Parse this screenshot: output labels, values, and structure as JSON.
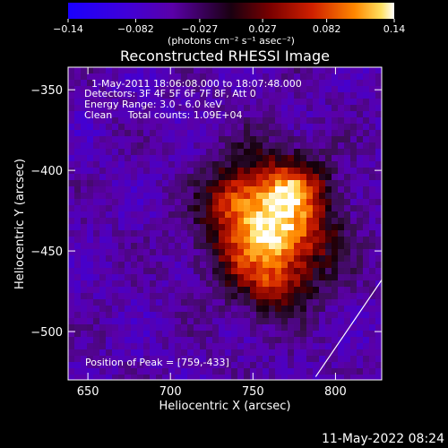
{
  "chart_data": {
    "type": "heatmap",
    "title": "Reconstructed RHESSI Image",
    "xlabel": "Heliocentric X (arcsec)",
    "ylabel": "Heliocentric Y (arcsec)",
    "xlim": [
      638,
      828
    ],
    "ylim": [
      -530,
      -336
    ],
    "x_ticks": [
      650,
      700,
      750,
      800
    ],
    "y_ticks": [
      -350,
      -400,
      -450,
      -500
    ],
    "x_tick_labels": [
      "650",
      "700",
      "750",
      "800"
    ],
    "y_tick_labels": [
      "−350",
      "−400",
      "−450",
      "−500"
    ],
    "colorbar": {
      "range": [
        -0.14,
        0.14
      ],
      "ticks": [
        -0.14,
        -0.082,
        -0.027,
        0.027,
        0.082,
        0.14
      ],
      "tick_labels": [
        "−0.14",
        "−0.082",
        "−0.027",
        "0.027",
        "0.082",
        "0.14"
      ],
      "units_label": "(photons cm⁻² s⁻¹ asec⁻²)",
      "colormap": [
        "#1a00ff",
        "#5a00b0",
        "#3a1050",
        "#000000",
        "#7a0000",
        "#d02000",
        "#ff8800",
        "#ffffff"
      ]
    },
    "info_lines": [
      "1-May-2011 18:06:08.000 to 18:07:48.000",
      "Detectors: 3F 4F 5F 6F 7F 8F, Att 0",
      "Energy Range: 3.0 - 6.0 keV",
      "Clean     Total counts: 1.09E+04"
    ],
    "peak": {
      "x": 759,
      "y": -433,
      "label": "Position of Peak = [759,-433]"
    },
    "limb_line": [
      {
        "x": 788,
        "y": -528
      },
      {
        "x": 828,
        "y": -468
      }
    ],
    "grid": false
  },
  "footer": {
    "date": "11-May-2022 08:24"
  }
}
